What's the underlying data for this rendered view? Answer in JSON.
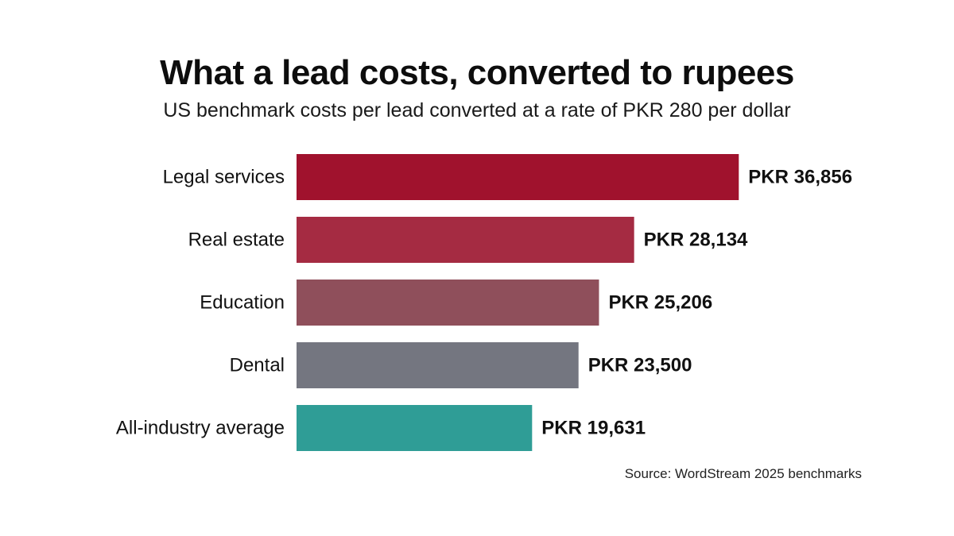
{
  "title": "What a lead costs, converted to rupees",
  "subtitle": "US benchmark costs per lead converted at a rate of PKR 280 per dollar",
  "source": "Source: WordStream 2025 benchmarks",
  "chart_data": {
    "type": "bar",
    "orientation": "horizontal",
    "title": "What a lead costs, converted to rupees",
    "subtitle": "US benchmark costs per lead converted at a rate of PKR 280 per dollar",
    "xlabel": "",
    "ylabel": "",
    "grid": false,
    "legend": "none",
    "categories": [
      "Legal services",
      "Real estate",
      "Education",
      "Dental",
      "All-industry average"
    ],
    "values": [
      36856,
      28134,
      25206,
      23500,
      19631
    ],
    "labels": [
      "PKR 36,856",
      "PKR 28,134",
      "PKR 25,206",
      "PKR 23,500",
      "PKR 19,631"
    ],
    "colors": [
      "#a0122d",
      "#a52b42",
      "#8f4f5b",
      "#747680",
      "#2f9d96"
    ],
    "xlim": [
      0,
      37300
    ]
  }
}
